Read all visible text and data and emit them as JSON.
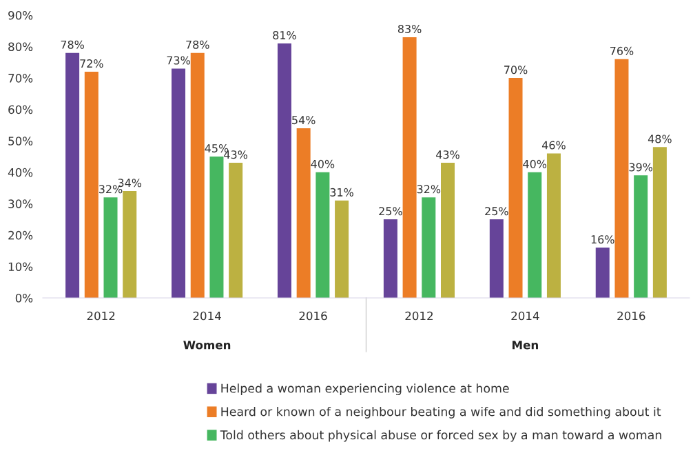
{
  "chart_data": {
    "type": "bar",
    "categories": [
      "2012",
      "2014",
      "2016",
      "2012",
      "2014",
      "2016"
    ],
    "series": [
      {
        "name": "Helped a woman experiencing violence at home",
        "color": "#664499",
        "values": [
          78,
          73,
          81,
          25,
          25,
          16
        ]
      },
      {
        "name": "Heard or known of a neighbour beating a wife and did something about it",
        "color": "#ec7d26",
        "values": [
          72,
          78,
          54,
          83,
          70,
          76
        ]
      },
      {
        "name": "Told others about physical abuse or forced sex by a man toward a woman",
        "color": "#46b760",
        "values": [
          32,
          45,
          40,
          32,
          40,
          39
        ]
      },
      {
        "color": "#bcb141",
        "values": [
          34,
          43,
          31,
          43,
          46,
          48
        ]
      }
    ],
    "ylim": [
      0,
      90
    ],
    "yticks": [
      {
        "value": 0,
        "label": "0%"
      },
      {
        "value": 10,
        "label": "10%"
      },
      {
        "value": 20,
        "label": "20%"
      },
      {
        "value": 30,
        "label": "30%"
      },
      {
        "value": 40,
        "label": "40%"
      },
      {
        "value": 50,
        "label": "50%"
      },
      {
        "value": 60,
        "label": "60%"
      },
      {
        "value": 70,
        "label": "70%"
      },
      {
        "value": 80,
        "label": "80%"
      },
      {
        "value": 90,
        "label": "90%"
      }
    ],
    "value_labels": [
      [
        "78%",
        "73%",
        "81%",
        "25%",
        "25%",
        "16%"
      ],
      [
        "72%",
        "78%",
        "54%",
        "83%",
        "70%",
        "76%"
      ],
      [
        "32%",
        "45%",
        "40%",
        "32%",
        "40%",
        "39%"
      ],
      [
        "34%",
        "43%",
        "31%",
        "43%",
        "46%",
        "48%"
      ]
    ],
    "annotations": [
      "Women",
      "Men"
    ],
    "grid": false,
    "legend": "bottom"
  }
}
